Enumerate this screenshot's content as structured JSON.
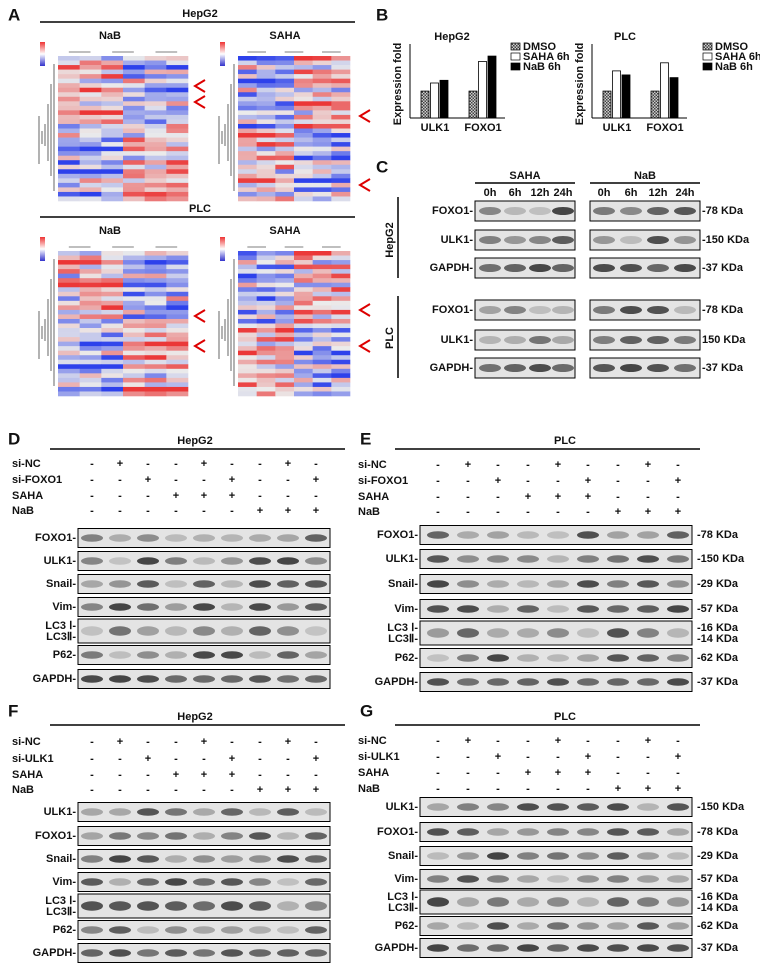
{
  "panel_a": {
    "label": "A",
    "title_top": "HepG2",
    "top_left": "NaB",
    "top_right": "SAHA",
    "title_bottom": "PLC",
    "bottom_left": "NaB",
    "bottom_right": "SAHA"
  },
  "panel_b": {
    "label": "B"
  },
  "chart_data": [
    {
      "type": "bar",
      "title": "HepG2",
      "y_label": "Expression fold",
      "categories": [
        "ULK1",
        "FOXO1"
      ],
      "ylim": [
        0,
        2.6
      ],
      "series": [
        {
          "name": "DMSO",
          "color": "#9a9a9a",
          "values": [
            1,
            1
          ]
        },
        {
          "name": "SAHA 6h",
          "color": "#ffffff",
          "values": [
            1.3,
            2.1
          ]
        },
        {
          "name": "NaB 6h",
          "color": "#000000",
          "values": [
            1.4,
            2.3
          ]
        }
      ]
    },
    {
      "type": "bar",
      "title": "PLC",
      "y_label": "Expression fold",
      "categories": [
        "ULK1",
        "FOXO1"
      ],
      "ylim": [
        0,
        2.6
      ],
      "series": [
        {
          "name": "DMSO",
          "color": "#9a9a9a",
          "values": [
            1,
            1
          ]
        },
        {
          "name": "SAHA 6h",
          "color": "#ffffff",
          "values": [
            1.75,
            2.05
          ]
        },
        {
          "name": "NaB 6h",
          "color": "#000000",
          "values": [
            1.6,
            1.5
          ]
        }
      ]
    }
  ],
  "panel_c": {
    "label": "C",
    "groups": [
      {
        "name": "SAHA",
        "lanes": [
          "0h",
          "6h",
          "12h",
          "24h"
        ]
      },
      {
        "name": "NaB",
        "lanes": [
          "0h",
          "6h",
          "12h",
          "24h"
        ]
      }
    ],
    "cell_lines": [
      {
        "name": "HepG2",
        "rows": [
          "FOXO1-",
          "ULK1-",
          "GAPDH-"
        ],
        "sizes": [
          "-78 KDa",
          "-150 KDa",
          "-37 KDa"
        ]
      },
      {
        "name": "PLC",
        "rows": [
          "FOXO1-",
          "ULK1-",
          "GAPDH-"
        ],
        "sizes": [
          "-78 KDa",
          "150 KDa",
          "-37 KDa"
        ]
      }
    ]
  },
  "blots": [
    {
      "label": "D",
      "title": "HepG2",
      "conditions": [
        {
          "name": "si-NC",
          "signs": [
            "-",
            "+",
            "-",
            "-",
            "+",
            "-",
            "-",
            "+",
            "-"
          ]
        },
        {
          "name": "si-FOXO1",
          "signs": [
            "-",
            "-",
            "+",
            "-",
            "-",
            "+",
            "-",
            "-",
            "+"
          ]
        },
        {
          "name": "SAHA",
          "signs": [
            "-",
            "-",
            "-",
            "+",
            "+",
            "+",
            "-",
            "-",
            "-"
          ]
        },
        {
          "name": "NaB",
          "signs": [
            "-",
            "-",
            "-",
            "-",
            "-",
            "-",
            "+",
            "+",
            "+"
          ]
        }
      ],
      "bands": [
        {
          "labels": [
            "FOXO1-"
          ]
        },
        {
          "labels": [
            "ULK1-"
          ]
        },
        {
          "labels": [
            "Snail-"
          ]
        },
        {
          "labels": [
            "Vim-"
          ]
        },
        {
          "labels": [
            "LC3 Ⅰ-",
            "LC3Ⅱ-"
          ]
        },
        {
          "labels": [
            "P62-"
          ]
        },
        {
          "labels": [
            "GAPDH-"
          ]
        }
      ]
    },
    {
      "label": "E",
      "title": "PLC",
      "conditions": [
        {
          "name": "si-NC",
          "signs": [
            "-",
            "+",
            "-",
            "-",
            "+",
            "-",
            "-",
            "+",
            "-"
          ]
        },
        {
          "name": "si-FOXO1",
          "signs": [
            "-",
            "-",
            "+",
            "-",
            "-",
            "+",
            "-",
            "-",
            "+"
          ]
        },
        {
          "name": "SAHA",
          "signs": [
            "-",
            "-",
            "-",
            "+",
            "+",
            "+",
            "-",
            "-",
            "-"
          ]
        },
        {
          "name": "NaB",
          "signs": [
            "-",
            "-",
            "-",
            "-",
            "-",
            "-",
            "+",
            "+",
            "+"
          ]
        }
      ],
      "bands": [
        {
          "labels": [
            "FOXO1-"
          ],
          "sizes": [
            "-78 KDa"
          ]
        },
        {
          "labels": [
            "ULK1-"
          ],
          "sizes": [
            "-150 KDa"
          ]
        },
        {
          "labels": [
            "Snail-"
          ],
          "sizes": [
            "-29 KDa"
          ]
        },
        {
          "labels": [
            "Vim-"
          ],
          "sizes": [
            "-57 KDa"
          ]
        },
        {
          "labels": [
            "LC3 Ⅰ-",
            "LC3Ⅱ-"
          ],
          "sizes": [
            "-16 KDa",
            "-14 KDa"
          ]
        },
        {
          "labels": [
            "P62-"
          ],
          "sizes": [
            "-62 KDa"
          ]
        },
        {
          "labels": [
            "GAPDH-"
          ],
          "sizes": [
            "-37 KDa"
          ]
        }
      ]
    },
    {
      "label": "F",
      "title": "HepG2",
      "conditions": [
        {
          "name": "si-NC",
          "signs": [
            "-",
            "+",
            "-",
            "-",
            "+",
            "-",
            "-",
            "+",
            "-"
          ]
        },
        {
          "name": "si-ULK1",
          "signs": [
            "-",
            "-",
            "+",
            "-",
            "-",
            "+",
            "-",
            "-",
            "+"
          ]
        },
        {
          "name": "SAHA",
          "signs": [
            "-",
            "-",
            "-",
            "+",
            "+",
            "+",
            "-",
            "-",
            "-"
          ]
        },
        {
          "name": "NaB",
          "signs": [
            "-",
            "-",
            "-",
            "-",
            "-",
            "-",
            "+",
            "+",
            "+"
          ]
        }
      ],
      "bands": [
        {
          "labels": [
            "ULK1-"
          ]
        },
        {
          "labels": [
            "FOXO1-"
          ]
        },
        {
          "labels": [
            "Snail-"
          ]
        },
        {
          "labels": [
            "Vim-"
          ]
        },
        {
          "labels": [
            "LC3 Ⅰ-",
            "LC3Ⅱ-"
          ]
        },
        {
          "labels": [
            "P62-"
          ]
        },
        {
          "labels": [
            "GAPDH-"
          ]
        }
      ]
    },
    {
      "label": "G",
      "title": "PLC",
      "conditions": [
        {
          "name": "si-NC",
          "signs": [
            "-",
            "+",
            "-",
            "-",
            "+",
            "-",
            "-",
            "+",
            "-"
          ]
        },
        {
          "name": "si-ULK1",
          "signs": [
            "-",
            "-",
            "+",
            "-",
            "-",
            "+",
            "-",
            "-",
            "+"
          ]
        },
        {
          "name": "SAHA",
          "signs": [
            "-",
            "-",
            "-",
            "+",
            "+",
            "+",
            "-",
            "-",
            "-"
          ]
        },
        {
          "name": "NaB",
          "signs": [
            "-",
            "-",
            "-",
            "-",
            "-",
            "-",
            "+",
            "+",
            "+"
          ]
        }
      ],
      "bands": [
        {
          "labels": [
            "ULK1-"
          ],
          "sizes": [
            "-150 KDa"
          ]
        },
        {
          "labels": [
            "FOXO1-"
          ],
          "sizes": [
            "-78 KDa"
          ]
        },
        {
          "labels": [
            "Snail-"
          ],
          "sizes": [
            "-29 KDa"
          ]
        },
        {
          "labels": [
            "Vim-"
          ],
          "sizes": [
            "-57 KDa"
          ]
        },
        {
          "labels": [
            "LC3 Ⅰ-",
            "LC3Ⅱ-"
          ],
          "sizes": [
            "-16 KDa",
            "-14 KDa"
          ]
        },
        {
          "labels": [
            "P62-"
          ],
          "sizes": [
            "-62 KDa"
          ]
        },
        {
          "labels": [
            "GAPDH-"
          ],
          "sizes": [
            "-37 KDa"
          ]
        }
      ]
    }
  ]
}
